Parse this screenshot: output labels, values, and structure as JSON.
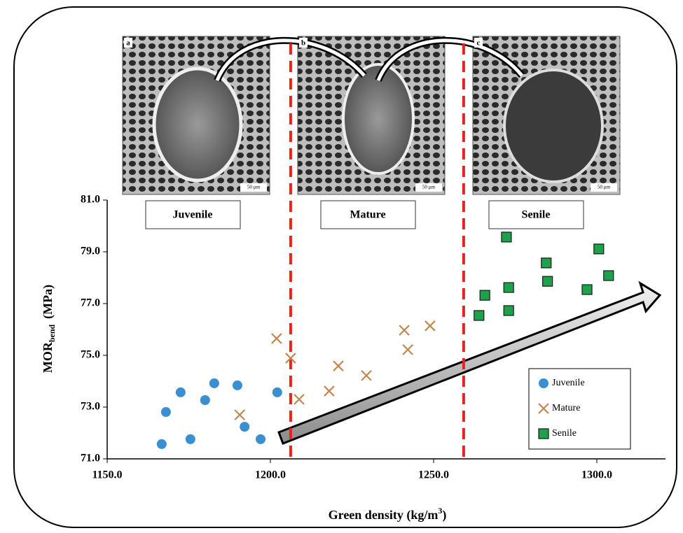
{
  "chart_data": {
    "type": "scatter",
    "xlabel": {
      "main": "Green density (kg/m",
      "sup": "3",
      "end": ")"
    },
    "ylabel": {
      "main": "MOR",
      "sub": "bend",
      "unit": "(MPa)"
    },
    "xlim": [
      1150,
      1321
    ],
    "ylim": [
      71,
      81
    ],
    "xticks": [
      {
        "value": 1150,
        "label": "1150.0"
      },
      {
        "value": 1200,
        "label": "1200.0"
      },
      {
        "value": 1250,
        "label": "1250.0"
      },
      {
        "value": 1300,
        "label": "1300.0"
      }
    ],
    "yticks": [
      {
        "value": 71,
        "label": "71.0"
      },
      {
        "value": 73,
        "label": "73.0"
      },
      {
        "value": 75,
        "label": "75.0"
      },
      {
        "value": 77,
        "label": "77.0"
      },
      {
        "value": 79,
        "label": "79.0"
      },
      {
        "value": 81,
        "label": "81.0"
      }
    ],
    "dividers": [
      1206.2,
      1259.2
    ],
    "divider_color": "#e8221c",
    "legend": "lower right",
    "panels": [
      {
        "label": "a",
        "scale": "50 µm",
        "name": "Juvenile"
      },
      {
        "label": "b",
        "scale": "50 µm",
        "name": "Mature"
      },
      {
        "label": "c",
        "scale": "50 µm",
        "name": "Senile"
      }
    ],
    "series": [
      {
        "name": "Juvenile",
        "marker": "circle",
        "color": "#3a8fd0",
        "x": [
          1166.7,
          1168.0,
          1172.5,
          1175.5,
          1180.0,
          1182.8,
          1189.9,
          1192.1,
          1197.0,
          1202.1
        ],
        "values": [
          71.57,
          72.81,
          73.57,
          71.76,
          73.27,
          73.92,
          73.84,
          72.24,
          71.76,
          73.57
        ]
      },
      {
        "name": "Mature",
        "marker": "x",
        "color": "#c0874f",
        "x": [
          1201.9,
          1190.6,
          1206.2,
          1208.8,
          1218.0,
          1220.8,
          1229.4,
          1241.0,
          1242.1,
          1248.9
        ],
        "values": [
          75.65,
          72.7,
          74.89,
          73.3,
          73.62,
          74.59,
          74.22,
          75.97,
          75.22,
          76.14
        ]
      },
      {
        "name": "Senile",
        "marker": "square",
        "color": "#1fa04a",
        "x": [
          1263.9,
          1265.7,
          1272.3,
          1273.0,
          1273.0,
          1284.5,
          1284.9,
          1297.0,
          1300.6,
          1303.6
        ],
        "values": [
          76.54,
          77.32,
          79.57,
          77.62,
          76.73,
          78.57,
          77.86,
          77.54,
          79.11,
          78.08
        ]
      }
    ]
  }
}
